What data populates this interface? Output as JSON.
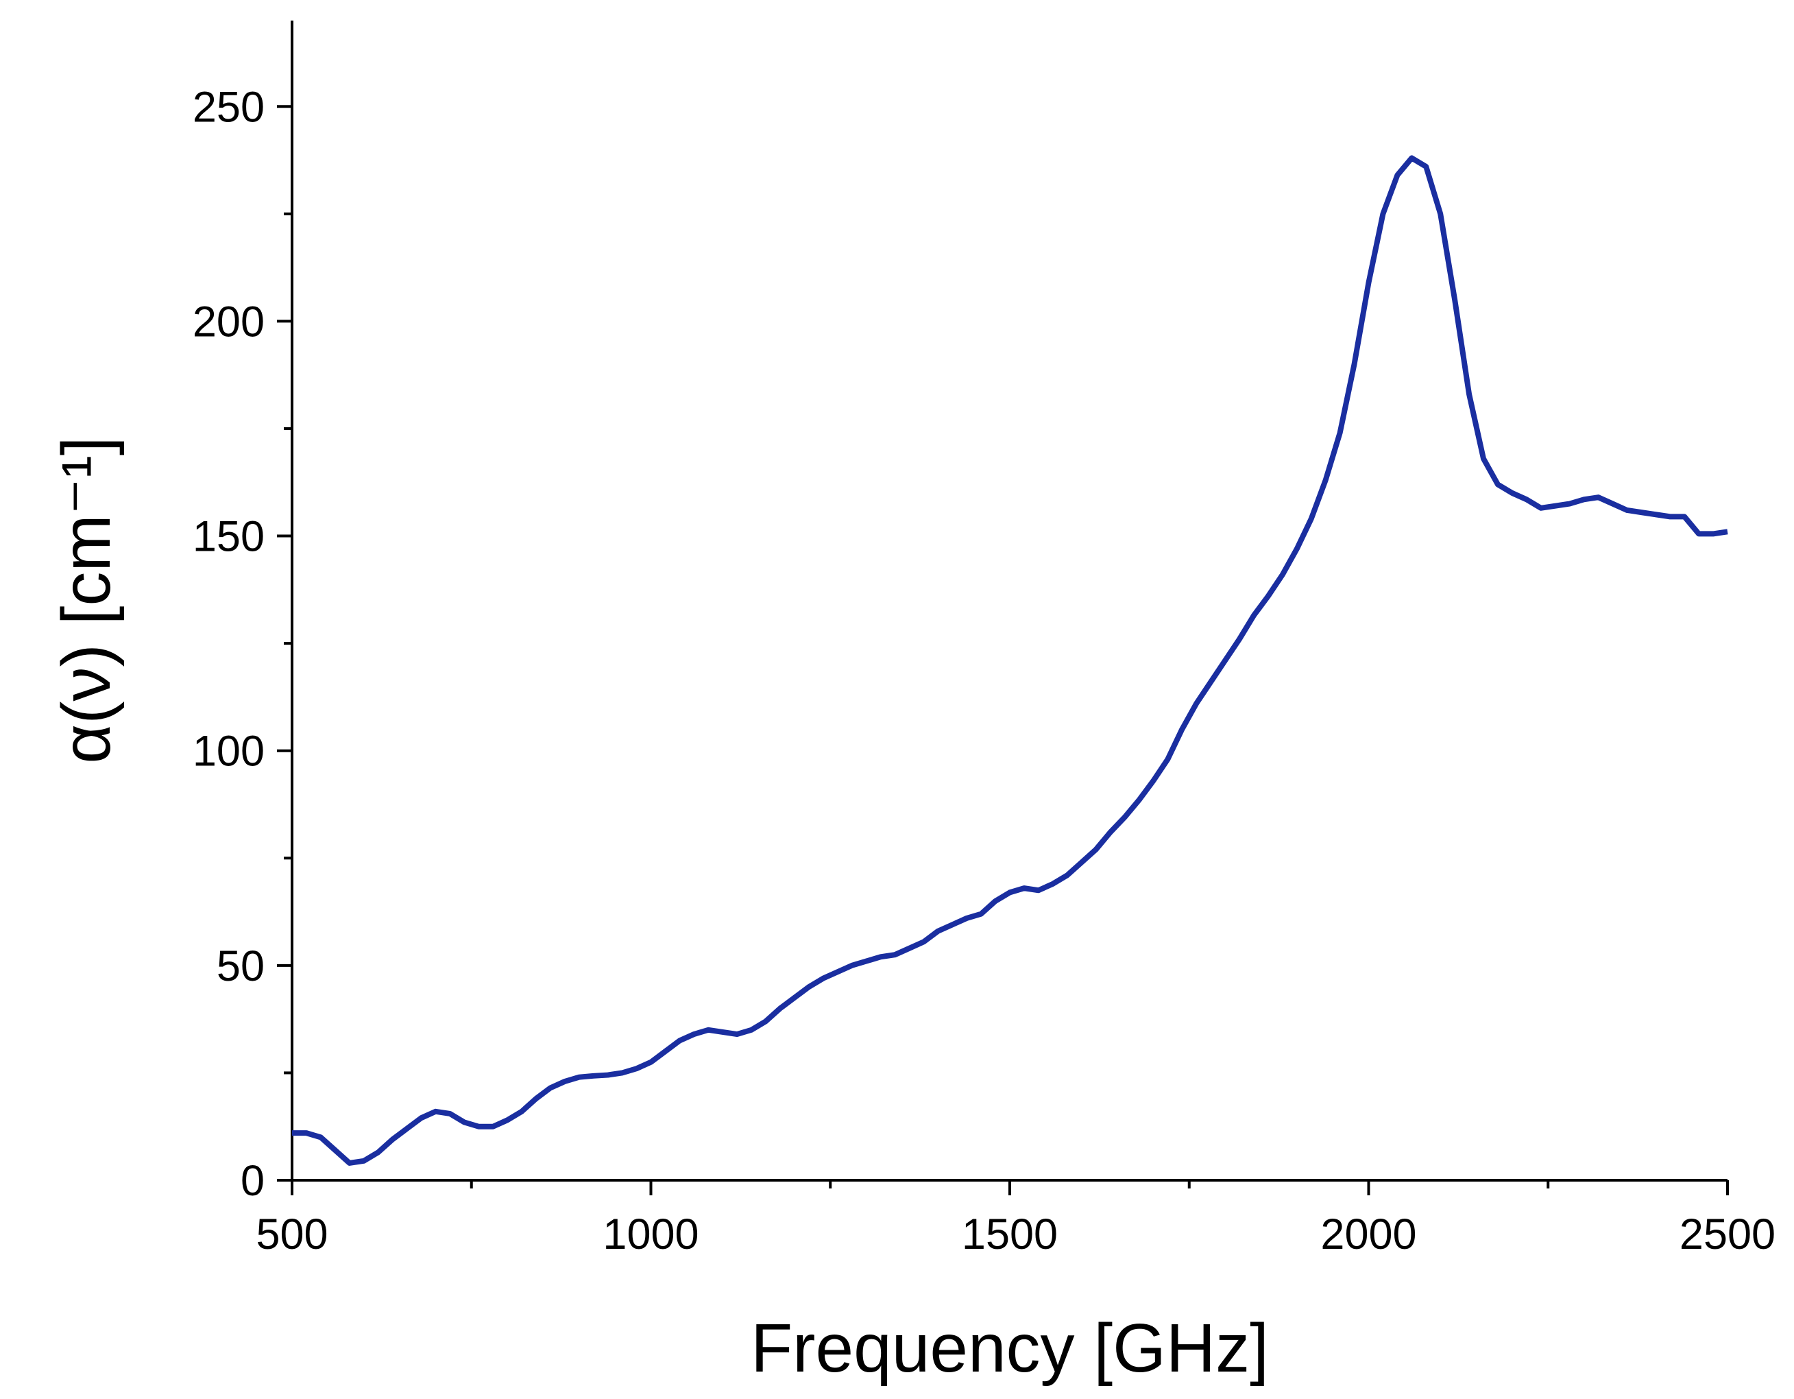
{
  "chart_data": {
    "type": "line",
    "xlabel": "Frequency [GHz]",
    "ylabel": "α(ν) [cm⁻¹]",
    "x": [
      500,
      520,
      540,
      560,
      580,
      600,
      620,
      640,
      660,
      680,
      700,
      720,
      740,
      760,
      780,
      800,
      820,
      840,
      860,
      880,
      900,
      920,
      940,
      960,
      980,
      1000,
      1020,
      1040,
      1060,
      1080,
      1100,
      1120,
      1140,
      1160,
      1180,
      1200,
      1220,
      1240,
      1260,
      1280,
      1300,
      1320,
      1340,
      1360,
      1380,
      1400,
      1420,
      1440,
      1460,
      1480,
      1500,
      1520,
      1540,
      1560,
      1580,
      1600,
      1620,
      1640,
      1660,
      1680,
      1700,
      1720,
      1740,
      1760,
      1780,
      1800,
      1820,
      1840,
      1860,
      1880,
      1900,
      1920,
      1940,
      1960,
      1980,
      2000,
      2020,
      2040,
      2060,
      2080,
      2100,
      2120,
      2140,
      2160,
      2180,
      2200,
      2220,
      2240,
      2260,
      2280,
      2300,
      2320,
      2340,
      2360,
      2380,
      2400,
      2420,
      2440,
      2460,
      2480,
      2500
    ],
    "series": [
      {
        "color": "#1a2ea0",
        "values": [
          11,
          11,
          10,
          7,
          4,
          4.5,
          6.5,
          9.5,
          12,
          14.5,
          16,
          15.5,
          13.5,
          12.5,
          12.5,
          14,
          16,
          19,
          21.5,
          23,
          24,
          24.3,
          24.5,
          25,
          26,
          27.5,
          30,
          32.5,
          34,
          35,
          34.5,
          34,
          35,
          37,
          40,
          42.5,
          45,
          47,
          48.5,
          50,
          51,
          52,
          52.5,
          54,
          55.5,
          58,
          59.5,
          61,
          62,
          65,
          67,
          68,
          67.5,
          69,
          71,
          74,
          77,
          81,
          84.5,
          88.5,
          93,
          98,
          105,
          111,
          116,
          121,
          126,
          131.5,
          136,
          141,
          147,
          154,
          163,
          174,
          190,
          209,
          225,
          234,
          238,
          236,
          225,
          205,
          183,
          168,
          162,
          160,
          158.5,
          156.5,
          157,
          157.5,
          158.5,
          159,
          157.5,
          156,
          155.5,
          155,
          154.5,
          154.5,
          150.5,
          150.5,
          151
        ]
      }
    ],
    "xlim": [
      500,
      2500
    ],
    "xticks": [
      500,
      1000,
      1500,
      2000,
      2500
    ],
    "xminorticks": [
      750,
      1250,
      1750,
      2250
    ],
    "ylim": [
      0,
      270
    ],
    "yticks": [
      0,
      50,
      100,
      150,
      200,
      250
    ],
    "yminorticks": [
      25,
      75,
      125,
      175,
      225
    ]
  }
}
